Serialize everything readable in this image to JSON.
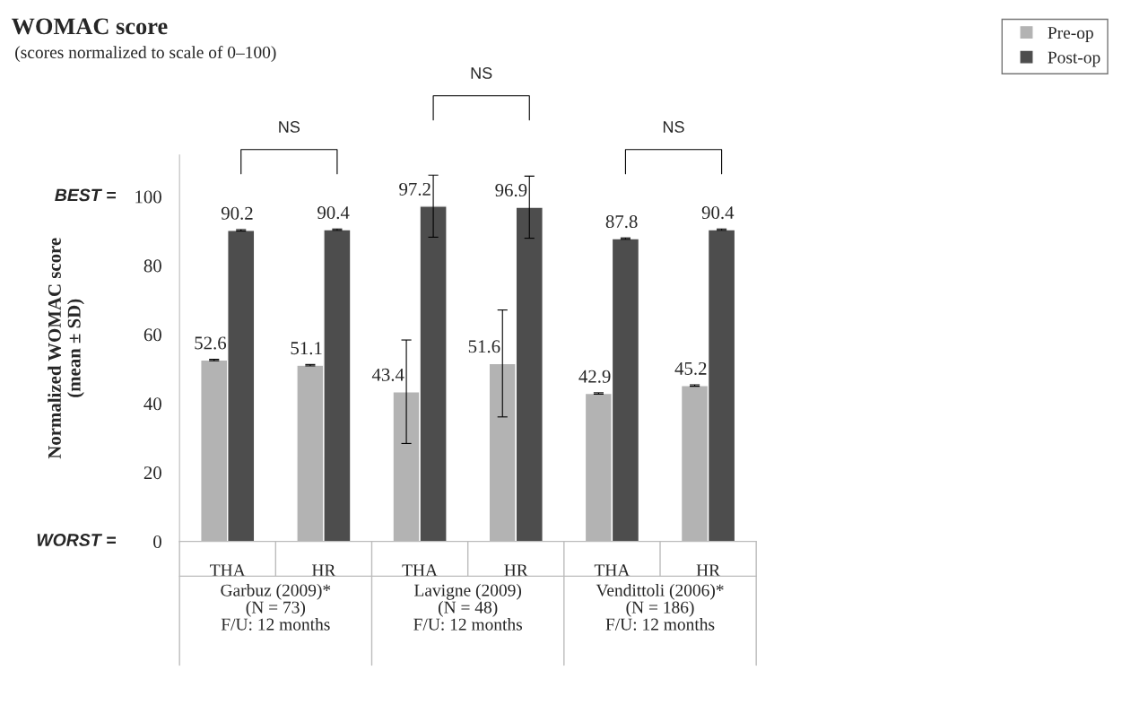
{
  "chart_data": {
    "type": "bar",
    "title": "WOMAC score",
    "subtitle": "(scores normalized to scale of 0–100)",
    "ylabel": "Normalized WOMAC score\n(mean ± SD)",
    "categories": [
      "THA",
      "HR",
      "THA",
      "HR",
      "THA",
      "HR"
    ],
    "series": [
      {
        "name": "Pre-op",
        "color": "#b3b3b3",
        "values": [
          52.6,
          51.1,
          43.4,
          51.6,
          42.9,
          45.2
        ],
        "errors": [
          0.2,
          0.2,
          15,
          15.5,
          0.2,
          0.2
        ]
      },
      {
        "name": "Post-op",
        "color": "#4d4d4d",
        "values": [
          90.2,
          90.4,
          97.2,
          96.9,
          87.8,
          90.4
        ],
        "errors": [
          0.2,
          0.2,
          9,
          9,
          0.2,
          0.2
        ]
      }
    ],
    "ylim": [
      0,
      112
    ],
    "yticks": [
      0,
      20,
      40,
      60,
      80,
      100
    ],
    "data_labels": true,
    "legend": "top right",
    "grid": false,
    "annotations": [
      "BEST =",
      "WORST =",
      "Garbuz (2009)*\n(N = 73)\nF/U: 12 months",
      "Lavigne (2009)\n(N = 48)\nF/U: 12 months",
      "Vendittoli (2006)*\n(N = 186)\nF/U: 12 months",
      "NS",
      "NS",
      "NS"
    ]
  }
}
